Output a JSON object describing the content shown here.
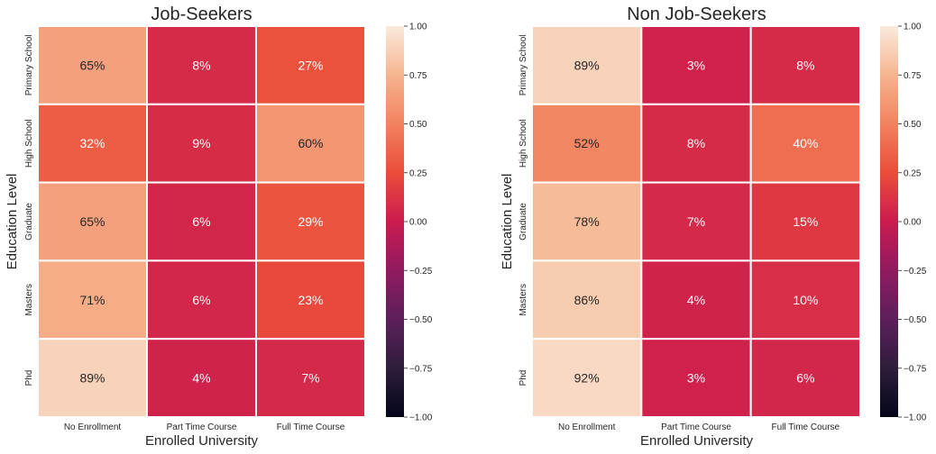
{
  "chart_data": [
    {
      "type": "heatmap",
      "title": "Job-Seekers",
      "xlabel": "Enrolled University",
      "ylabel": "Education Level",
      "x_categories": [
        "No Enrollment",
        "Part Time Course",
        "Full Time Course"
      ],
      "y_categories": [
        "Primary School",
        "High School",
        "Graduate",
        "Masters",
        "Phd"
      ],
      "values": [
        [
          0.65,
          0.08,
          0.27
        ],
        [
          0.32,
          0.09,
          0.6
        ],
        [
          0.65,
          0.06,
          0.29
        ],
        [
          0.71,
          0.06,
          0.23
        ],
        [
          0.89,
          0.04,
          0.07
        ]
      ],
      "annotations": [
        [
          "65%",
          "8%",
          "27%"
        ],
        [
          "32%",
          "9%",
          "60%"
        ],
        [
          "65%",
          "6%",
          "29%"
        ],
        [
          "71%",
          "6%",
          "23%"
        ],
        [
          "89%",
          "4%",
          "7%"
        ]
      ],
      "vmin": -1.0,
      "vmax": 1.0,
      "colorbar_ticks": [
        "1.00",
        "0.75",
        "0.50",
        "0.25",
        "0.00",
        "−0.25",
        "−0.50",
        "−0.75",
        "−1.00"
      ],
      "colorbar_tick_values": [
        1.0,
        0.75,
        0.5,
        0.25,
        0.0,
        -0.25,
        -0.5,
        -0.75,
        -1.0
      ],
      "colormap": "rocket"
    },
    {
      "type": "heatmap",
      "title": "Non Job-Seekers",
      "xlabel": "Enrolled University",
      "ylabel": "Education Level",
      "x_categories": [
        "No Enrollment",
        "Part Time Course",
        "Full Time Course"
      ],
      "y_categories": [
        "Primary School",
        "High School",
        "Graduate",
        "Masters",
        "Phd"
      ],
      "values": [
        [
          0.89,
          0.03,
          0.08
        ],
        [
          0.52,
          0.08,
          0.4
        ],
        [
          0.78,
          0.07,
          0.15
        ],
        [
          0.86,
          0.04,
          0.1
        ],
        [
          0.92,
          0.03,
          0.06
        ]
      ],
      "annotations": [
        [
          "89%",
          "3%",
          "8%"
        ],
        [
          "52%",
          "8%",
          "40%"
        ],
        [
          "78%",
          "7%",
          "15%"
        ],
        [
          "86%",
          "4%",
          "10%"
        ],
        [
          "92%",
          "3%",
          "6%"
        ]
      ],
      "vmin": -1.0,
      "vmax": 1.0,
      "colorbar_ticks": [
        "1.00",
        "0.75",
        "0.50",
        "0.25",
        "0.00",
        "−0.25",
        "−0.50",
        "−0.75",
        "−1.00"
      ],
      "colorbar_tick_values": [
        1.0,
        0.75,
        0.5,
        0.25,
        0.0,
        -0.25,
        -0.5,
        -0.75,
        -1.0
      ],
      "colormap": "rocket"
    }
  ]
}
